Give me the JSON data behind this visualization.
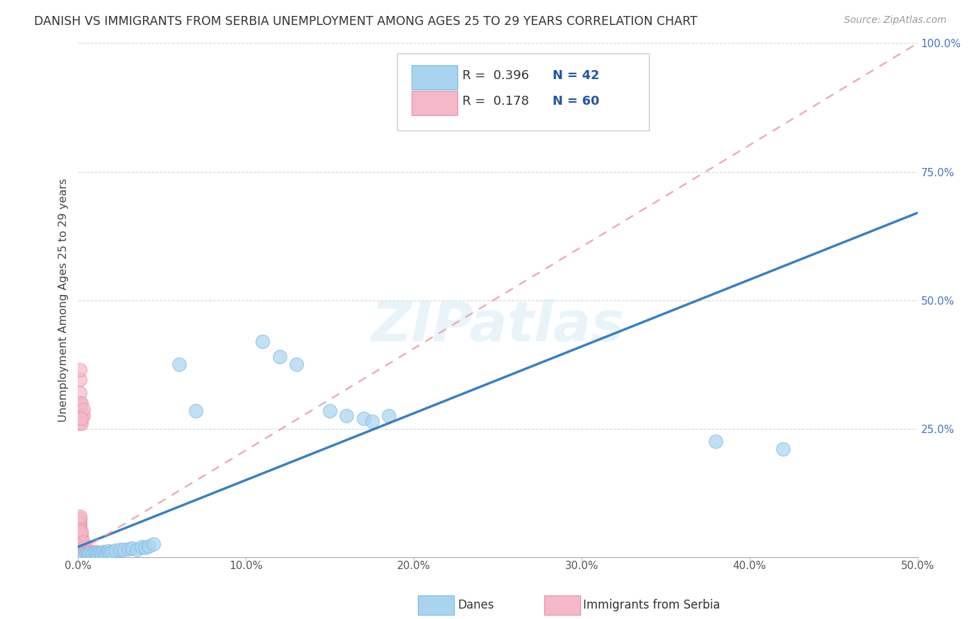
{
  "title": "DANISH VS IMMIGRANTS FROM SERBIA UNEMPLOYMENT AMONG AGES 25 TO 29 YEARS CORRELATION CHART",
  "source": "Source: ZipAtlas.com",
  "ylabel": "Unemployment Among Ages 25 to 29 years",
  "xlim": [
    0.0,
    0.5
  ],
  "ylim": [
    0.0,
    1.0
  ],
  "danes_R": 0.396,
  "danes_N": 42,
  "serbia_R": 0.178,
  "serbia_N": 60,
  "danes_color": "#a8d4f0",
  "danes_edge_color": "#7ab8e0",
  "serbia_color": "#f4b8c8",
  "serbia_edge_color": "#e890a8",
  "danes_line_color": "#3a7fc1",
  "serbia_line_color": "#e8a0b0",
  "watermark": "ZIPatlas",
  "legend_danes": "Danes",
  "legend_serbia": "Immigrants from Serbia",
  "background_color": "#ffffff",
  "grid_color": "#cccccc",
  "danes_scatter": [
    [
      0.001,
      0.005
    ],
    [
      0.002,
      0.004
    ],
    [
      0.003,
      0.006
    ],
    [
      0.004,
      0.003
    ],
    [
      0.005,
      0.008
    ],
    [
      0.006,
      0.005
    ],
    [
      0.007,
      0.007
    ],
    [
      0.008,
      0.004
    ],
    [
      0.009,
      0.006
    ],
    [
      0.01,
      0.008
    ],
    [
      0.011,
      0.005
    ],
    [
      0.012,
      0.007
    ],
    [
      0.013,
      0.009
    ],
    [
      0.014,
      0.006
    ],
    [
      0.015,
      0.01
    ],
    [
      0.016,
      0.007
    ],
    [
      0.017,
      0.008
    ],
    [
      0.018,
      0.012
    ],
    [
      0.019,
      0.007
    ],
    [
      0.02,
      0.01
    ],
    [
      0.022,
      0.013
    ],
    [
      0.025,
      0.015
    ],
    [
      0.027,
      0.014
    ],
    [
      0.03,
      0.016
    ],
    [
      0.032,
      0.017
    ],
    [
      0.035,
      0.015
    ],
    [
      0.038,
      0.02
    ],
    [
      0.04,
      0.018
    ],
    [
      0.042,
      0.022
    ],
    [
      0.045,
      0.025
    ],
    [
      0.06,
      0.375
    ],
    [
      0.07,
      0.285
    ],
    [
      0.11,
      0.42
    ],
    [
      0.12,
      0.39
    ],
    [
      0.13,
      0.375
    ],
    [
      0.15,
      0.285
    ],
    [
      0.16,
      0.275
    ],
    [
      0.17,
      0.27
    ],
    [
      0.175,
      0.265
    ],
    [
      0.185,
      0.275
    ],
    [
      0.38,
      0.225
    ],
    [
      0.42,
      0.21
    ]
  ],
  "serbia_scatter": [
    [
      0.001,
      0.005
    ],
    [
      0.001,
      0.008
    ],
    [
      0.001,
      0.01
    ],
    [
      0.001,
      0.012
    ],
    [
      0.001,
      0.015
    ],
    [
      0.001,
      0.018
    ],
    [
      0.001,
      0.02
    ],
    [
      0.001,
      0.022
    ],
    [
      0.001,
      0.025
    ],
    [
      0.001,
      0.03
    ],
    [
      0.001,
      0.035
    ],
    [
      0.001,
      0.04
    ],
    [
      0.001,
      0.045
    ],
    [
      0.001,
      0.05
    ],
    [
      0.001,
      0.055
    ],
    [
      0.001,
      0.06
    ],
    [
      0.001,
      0.065
    ],
    [
      0.001,
      0.07
    ],
    [
      0.001,
      0.075
    ],
    [
      0.001,
      0.08
    ],
    [
      0.002,
      0.005
    ],
    [
      0.002,
      0.01
    ],
    [
      0.002,
      0.015
    ],
    [
      0.002,
      0.02
    ],
    [
      0.002,
      0.025
    ],
    [
      0.002,
      0.03
    ],
    [
      0.002,
      0.035
    ],
    [
      0.002,
      0.04
    ],
    [
      0.002,
      0.045
    ],
    [
      0.002,
      0.05
    ],
    [
      0.003,
      0.005
    ],
    [
      0.003,
      0.01
    ],
    [
      0.003,
      0.015
    ],
    [
      0.003,
      0.02
    ],
    [
      0.003,
      0.025
    ],
    [
      0.003,
      0.03
    ],
    [
      0.004,
      0.005
    ],
    [
      0.004,
      0.01
    ],
    [
      0.004,
      0.015
    ],
    [
      0.004,
      0.02
    ],
    [
      0.005,
      0.005
    ],
    [
      0.005,
      0.01
    ],
    [
      0.006,
      0.005
    ],
    [
      0.006,
      0.01
    ],
    [
      0.007,
      0.008
    ],
    [
      0.008,
      0.01
    ],
    [
      0.009,
      0.008
    ],
    [
      0.01,
      0.01
    ],
    [
      0.001,
      0.3
    ],
    [
      0.001,
      0.32
    ],
    [
      0.001,
      0.345
    ],
    [
      0.001,
      0.365
    ],
    [
      0.002,
      0.285
    ],
    [
      0.002,
      0.3
    ],
    [
      0.003,
      0.275
    ],
    [
      0.003,
      0.288
    ],
    [
      0.001,
      0.26
    ],
    [
      0.001,
      0.27
    ],
    [
      0.002,
      0.26
    ],
    [
      0.002,
      0.27
    ]
  ],
  "danes_line_x0": 0.0,
  "danes_line_y0": 0.02,
  "danes_line_x1": 0.5,
  "danes_line_y1": 0.67,
  "serbia_line_x0": 0.0,
  "serbia_line_y0": 0.01,
  "serbia_line_x1": 0.5,
  "serbia_line_y1": 1.0
}
